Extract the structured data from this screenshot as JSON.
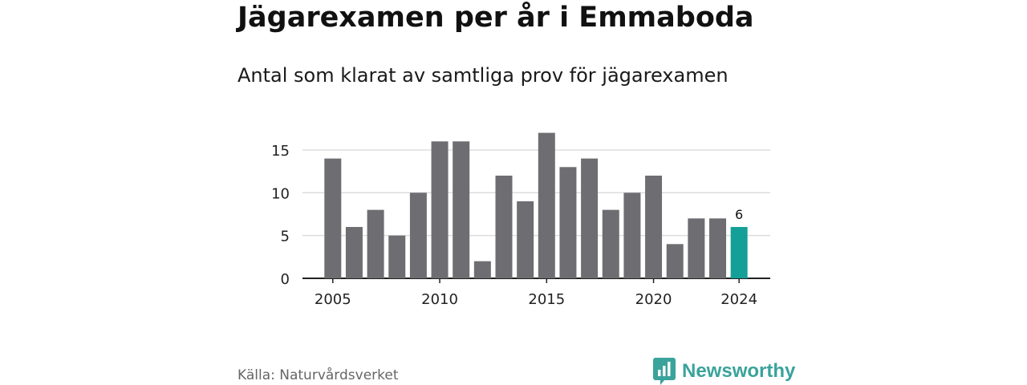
{
  "header": {
    "title": "Jägarexamen per år i Emmaboda",
    "subtitle": "Antal som klarat av samtliga prov för jägarexamen"
  },
  "footer": {
    "source": "Källa: Naturvårdsverket",
    "brand": "Newsworthy",
    "brand_icon": "chart-speech-bubble-icon"
  },
  "colors": {
    "bar": "#6e6d72",
    "highlight": "#14a098",
    "grid": "#dddddd",
    "axis": "#222222",
    "brand": "#3aa39b"
  },
  "chart_data": {
    "type": "bar",
    "x": [
      2005,
      2006,
      2007,
      2008,
      2009,
      2010,
      2011,
      2012,
      2013,
      2014,
      2015,
      2016,
      2017,
      2018,
      2019,
      2020,
      2021,
      2022,
      2023,
      2024
    ],
    "values": [
      14,
      6,
      8,
      5,
      10,
      16,
      16,
      2,
      12,
      9,
      17,
      13,
      14,
      8,
      10,
      12,
      4,
      7,
      7,
      6
    ],
    "x_ticks": [
      "2005",
      "2010",
      "2015",
      "2020",
      "2024"
    ],
    "y_ticks": [
      0,
      5,
      10,
      15
    ],
    "ylim": [
      0,
      17
    ],
    "highlight": {
      "x": 2024,
      "label": "6"
    },
    "grid": true,
    "legend": "none"
  }
}
